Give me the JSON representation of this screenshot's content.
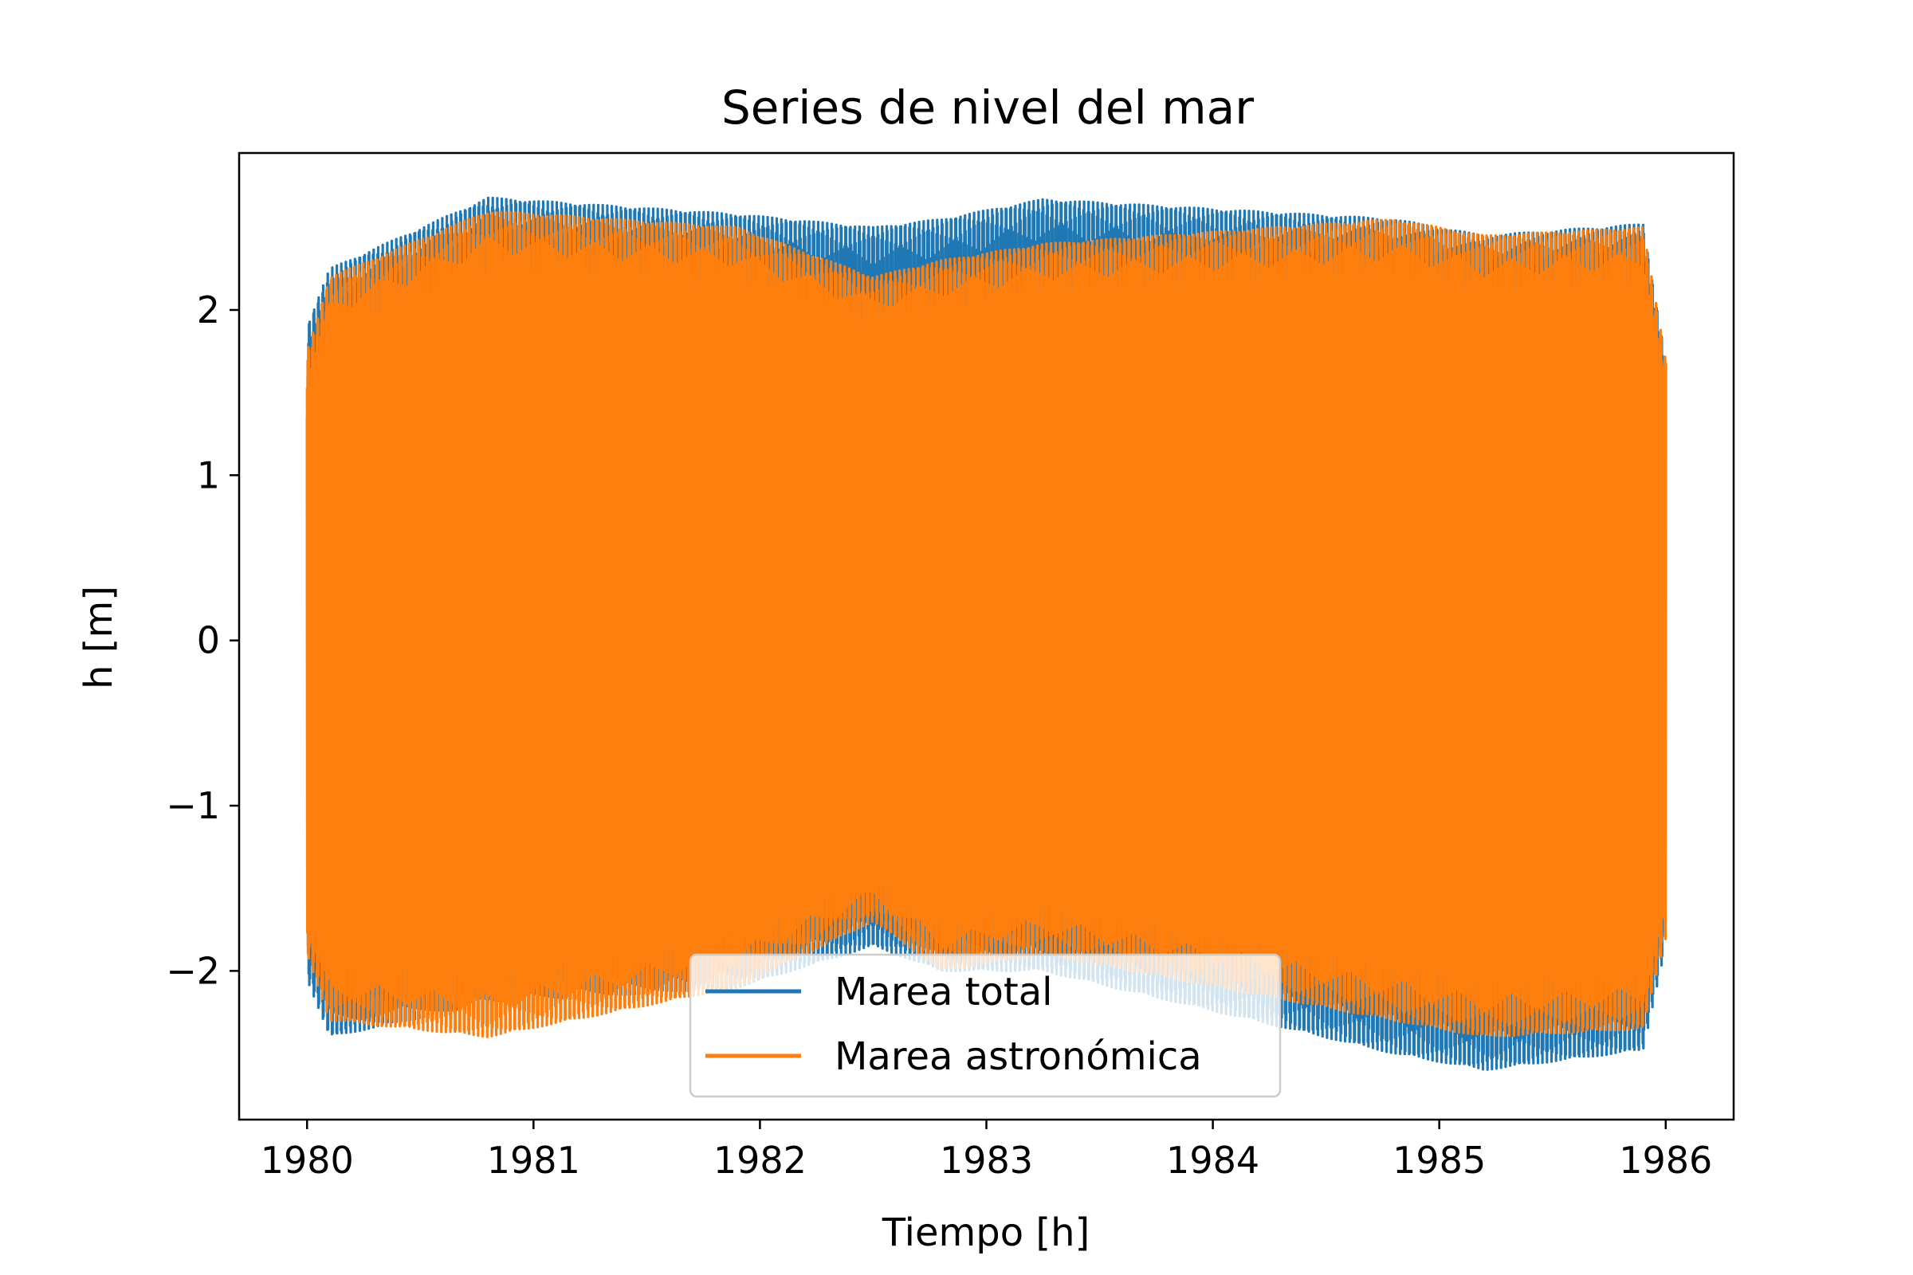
{
  "chart_data": {
    "type": "line",
    "title": "Series de nivel del mar",
    "xlabel": "Tiempo [h]",
    "ylabel": "h [m]",
    "xlim": [
      1979.7,
      1986.3
    ],
    "ylim": [
      -2.9,
      2.95
    ],
    "xticks": [
      1980,
      1981,
      1982,
      1983,
      1984,
      1985,
      1986
    ],
    "xtick_labels": [
      "1980",
      "1981",
      "1982",
      "1983",
      "1984",
      "1985",
      "1986"
    ],
    "yticks": [
      -2,
      -1,
      0,
      1,
      2
    ],
    "ytick_labels": [
      "−2",
      "−1",
      "0",
      "1",
      "2"
    ],
    "grid": false,
    "legend_position": "bottom-center",
    "x_range": [
      1980.0,
      1986.0
    ],
    "series": [
      {
        "name": "Marea total",
        "color": "#1f77b4",
        "envelope_note_x": [
          1980.0,
          1980.1,
          1980.8,
          1981.9,
          1982.5,
          1982.8,
          1983.25,
          1984.8,
          1985.2,
          1985.9,
          1986.0
        ],
        "upper": [
          1.9,
          2.25,
          2.68,
          2.58,
          2.5,
          2.55,
          2.67,
          2.55,
          2.45,
          2.52,
          1.7
        ],
        "lower": [
          -2.05,
          -2.4,
          -2.2,
          -2.1,
          -1.85,
          -2.0,
          -2.0,
          -2.5,
          -2.6,
          -2.48,
          -1.85
        ]
      },
      {
        "name": "Marea astronómica",
        "color": "#ff7f0e",
        "envelope_note_x": [
          1980.0,
          1980.1,
          1980.8,
          1981.9,
          1982.5,
          1982.8,
          1983.25,
          1984.8,
          1985.2,
          1985.9,
          1986.0
        ],
        "upper": [
          1.75,
          2.2,
          2.6,
          2.5,
          2.2,
          2.3,
          2.4,
          2.55,
          2.45,
          2.5,
          1.7
        ],
        "lower": [
          -1.9,
          -2.3,
          -2.4,
          -2.1,
          -1.7,
          -2.0,
          -1.9,
          -2.3,
          -2.4,
          -2.35,
          -1.8
        ]
      }
    ]
  }
}
